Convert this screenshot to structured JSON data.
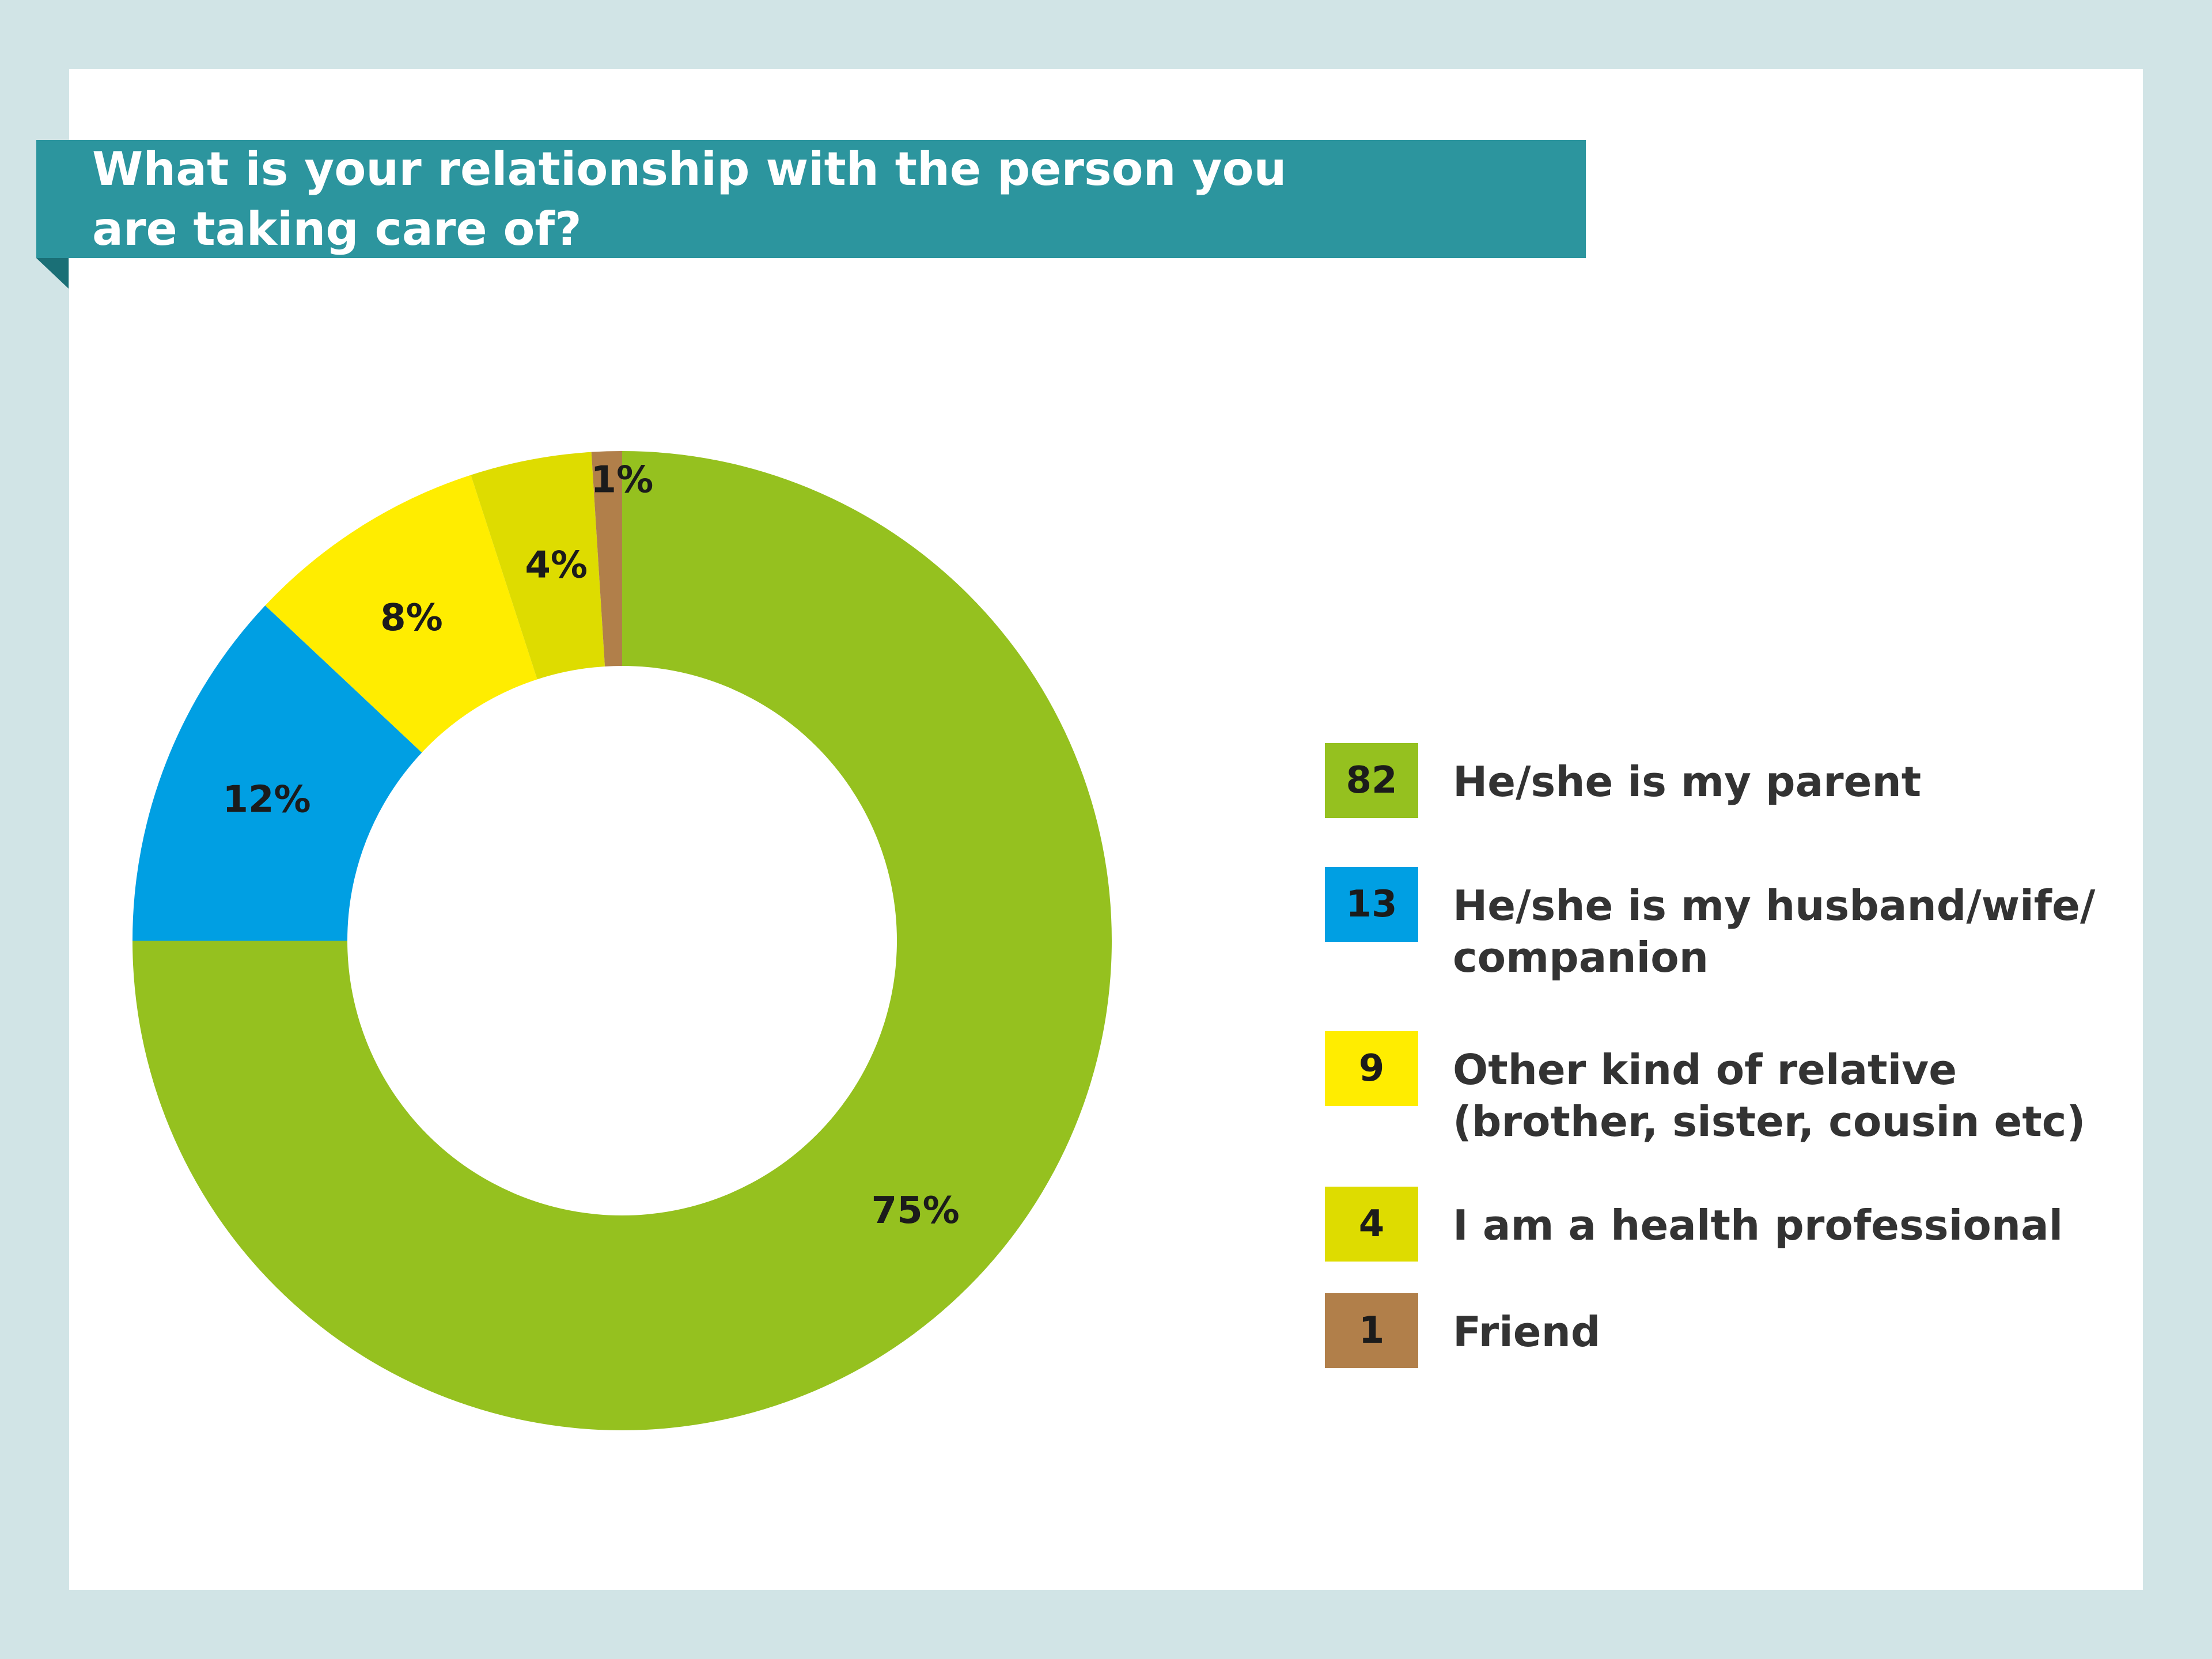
{
  "chart_data": {
    "type": "pie",
    "title": "What is your relationship with the person you are taking care of?",
    "slices": [
      {
        "label": "He/she is my parent",
        "count": "82",
        "percent": 75,
        "percent_label": "75%",
        "color": "#95c11f"
      },
      {
        "label": "He/she is my husband/wife/ companion",
        "count": "13",
        "percent": 12,
        "percent_label": "12%",
        "color": "#009fe3"
      },
      {
        "label": "Other kind of relative (brother, sister, cousin etc)",
        "count": "9",
        "percent": 8,
        "percent_label": "8%",
        "color": "#ffed00"
      },
      {
        "label": "I am a health professional",
        "count": "4",
        "percent": 4,
        "percent_label": "4%",
        "color": "#dedc00"
      },
      {
        "label": "Friend",
        "count": "1",
        "percent": 1,
        "percent_label": "1%",
        "color": "#b17f4a"
      }
    ],
    "legend_position": "right"
  },
  "colors": {
    "background": "#d1e4e6",
    "card": "#ffffff",
    "title_banner": "#2c959e"
  }
}
